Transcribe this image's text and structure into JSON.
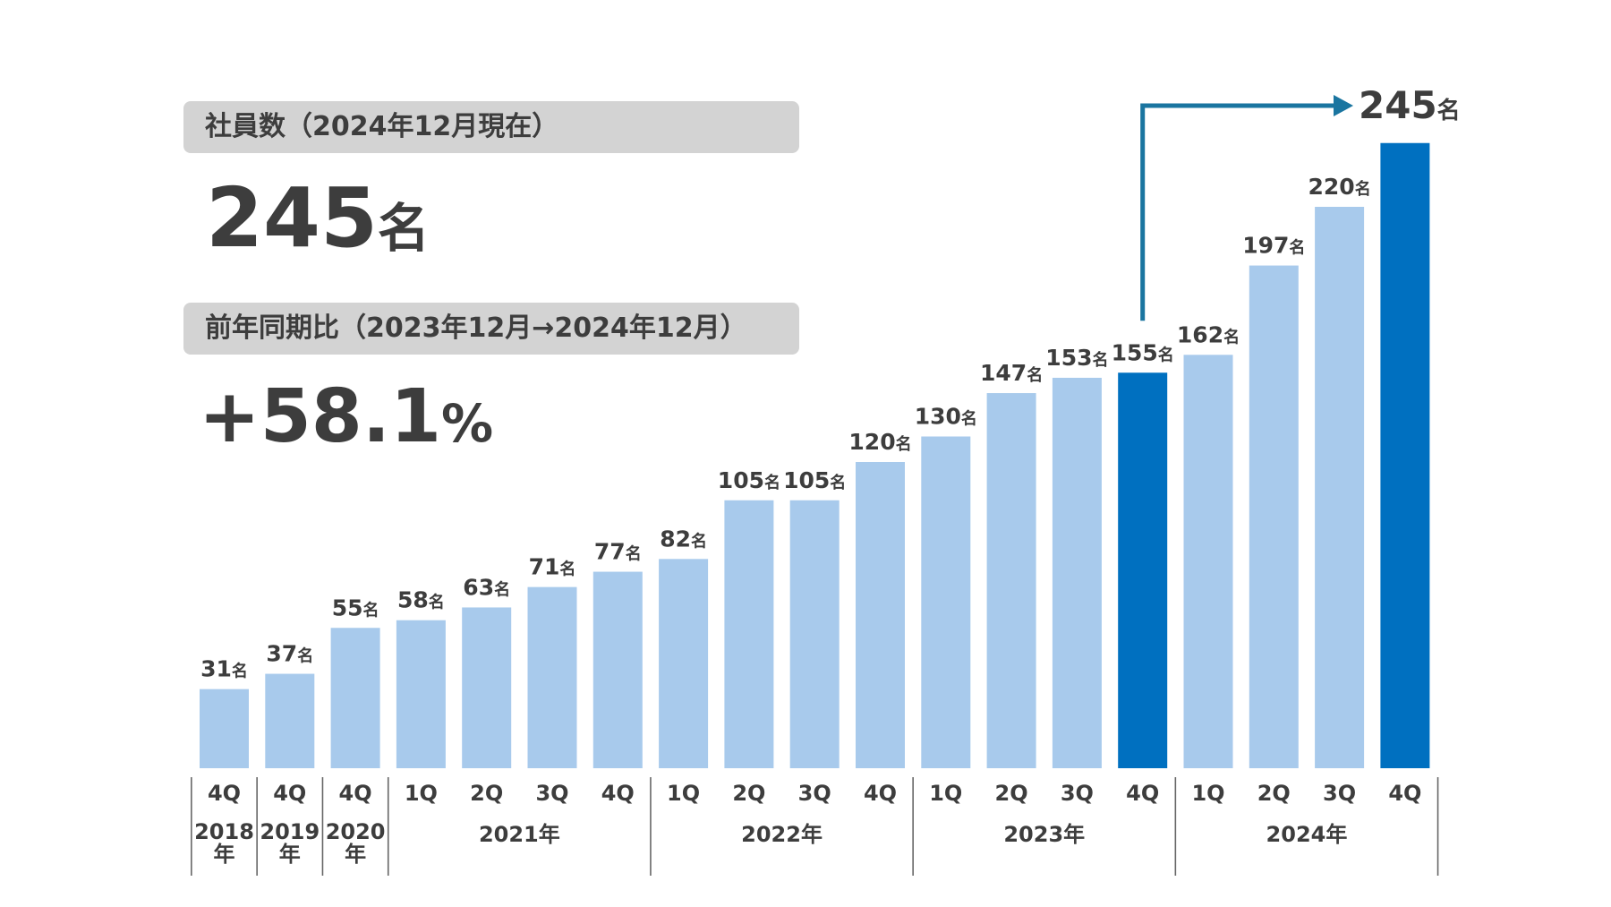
{
  "headcount_panel": {
    "label": "社員数（2024年12月現在）",
    "value": "245",
    "unit": "名"
  },
  "growth_panel": {
    "label": "前年同期比（2023年12月→2024年12月）",
    "value": "+58.1",
    "unit": "%"
  },
  "chart_data": {
    "type": "bar",
    "unit": "名",
    "categories": [
      "4Q",
      "4Q",
      "4Q",
      "1Q",
      "2Q",
      "3Q",
      "4Q",
      "1Q",
      "2Q",
      "3Q",
      "4Q",
      "1Q",
      "2Q",
      "3Q",
      "4Q",
      "1Q",
      "2Q",
      "3Q",
      "4Q"
    ],
    "values": [
      31,
      37,
      55,
      58,
      63,
      71,
      77,
      82,
      105,
      105,
      120,
      130,
      147,
      153,
      155,
      162,
      197,
      220,
      245
    ],
    "highlighted": [
      14,
      18
    ],
    "year_groups": [
      {
        "label": "2018年",
        "start": 0,
        "end": 0
      },
      {
        "label": "2019年",
        "start": 1,
        "end": 1
      },
      {
        "label": "2020年",
        "start": 2,
        "end": 2
      },
      {
        "label": "2021年",
        "start": 3,
        "end": 6
      },
      {
        "label": "2022年",
        "start": 7,
        "end": 10
      },
      {
        "label": "2023年",
        "start": 11,
        "end": 14
      },
      {
        "label": "2024年",
        "start": 15,
        "end": 18
      }
    ],
    "annotation": {
      "from_index": 14,
      "to_index": 18,
      "value": "245",
      "unit": "名"
    },
    "colors": {
      "normal": "#a8caec",
      "highlight": "#0070c0",
      "arrow": "#1a75a0",
      "text": "#3d3d3d",
      "divider": "#666666"
    },
    "grid": false
  }
}
